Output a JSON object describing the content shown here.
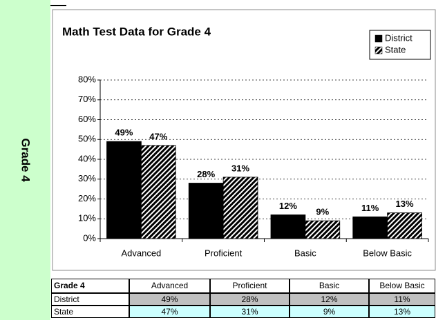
{
  "sidebar": "Grade 4",
  "chart_data": {
    "type": "bar",
    "title": "Math Test Data for Grade 4",
    "categories": [
      "Advanced",
      "Proficient",
      "Basic",
      "Below Basic"
    ],
    "series": [
      {
        "name": "District",
        "color": "#000000",
        "values": [
          49,
          28,
          12,
          11
        ],
        "value_labels": [
          "49%",
          "28%",
          "12%",
          "11%"
        ]
      },
      {
        "name": "State",
        "color": "#000000",
        "fill_pattern": "diagonal-hatch",
        "values": [
          47,
          31,
          9,
          13
        ],
        "value_labels": [
          "47%",
          "31%",
          "9%",
          "13%"
        ]
      }
    ],
    "ylim": [
      0,
      80
    ],
    "yticks": [
      {
        "value": 0,
        "label": "0%"
      },
      {
        "value": 10,
        "label": "10%"
      },
      {
        "value": 20,
        "label": "20%"
      },
      {
        "value": 30,
        "label": "30%"
      },
      {
        "value": 40,
        "label": "40%"
      },
      {
        "value": 50,
        "label": "50%"
      },
      {
        "value": 60,
        "label": "60%"
      },
      {
        "value": 70,
        "label": "70%"
      },
      {
        "value": 80,
        "label": "80%"
      }
    ],
    "grid": true,
    "legend": "top-right"
  },
  "table": {
    "header": [
      "Grade 4",
      "Advanced",
      "Proficient",
      "Basic",
      "Below Basic"
    ],
    "rows": [
      [
        "District",
        "49%",
        "28%",
        "12%",
        "11%"
      ],
      [
        "State",
        "47%",
        "31%",
        "9%",
        "13%"
      ]
    ]
  }
}
